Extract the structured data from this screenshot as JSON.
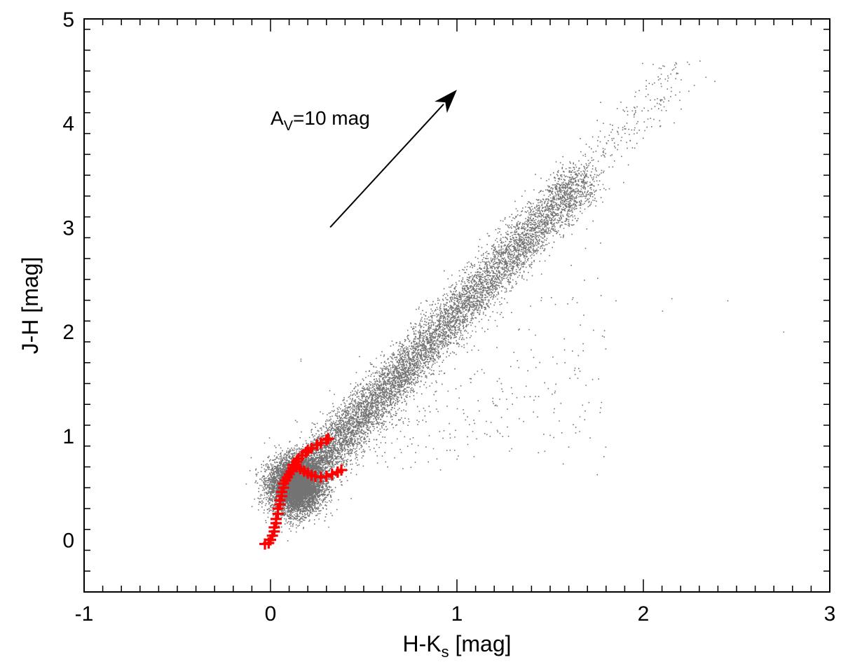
{
  "chart_data": {
    "type": "scatter",
    "title": "",
    "xlabel": {
      "main": "H-K",
      "sub": "s",
      "rest": " [mag]"
    },
    "ylabel": "J-H [mag]",
    "xlim": [
      -1,
      3
    ],
    "ylim": [
      -0.5,
      5
    ],
    "xticks": [
      "-1",
      "0",
      "1",
      "2",
      "3"
    ],
    "yticks": [
      "0",
      "1",
      "2",
      "3",
      "4",
      "5"
    ],
    "xtick_values": [
      -1,
      0,
      1,
      2,
      3
    ],
    "ytick_values": [
      0,
      1,
      2,
      3,
      4,
      5
    ],
    "x_minor_step": 0.1,
    "y_minor_step": 0.2,
    "grid": false,
    "annotation": {
      "text_main": "A",
      "text_sub": "V",
      "text_rest": "=10 mag",
      "x": 0.02,
      "y": 4.0
    },
    "reddening_vector": {
      "x0": 0.32,
      "y0": 3.0,
      "x1": 1.0,
      "y1": 4.32
    },
    "scatter_color": "#000000",
    "sequence_color": "#ff0000",
    "stellar_sequences": [
      {
        "marker": "+",
        "x": [
          -0.03,
          -0.01,
          0.0,
          0.01,
          0.02,
          0.02,
          0.03,
          0.03,
          0.04,
          0.04,
          0.05,
          0.05,
          0.06,
          0.06,
          0.07,
          0.07,
          0.08,
          0.09,
          0.1,
          0.11,
          0.12,
          0.13,
          0.14,
          0.15,
          0.17,
          0.19,
          0.2,
          0.22,
          0.25,
          0.27,
          0.3,
          0.31
        ],
        "y": [
          -0.04,
          -0.03,
          0.0,
          0.04,
          0.08,
          0.12,
          0.16,
          0.2,
          0.25,
          0.3,
          0.34,
          0.38,
          0.42,
          0.46,
          0.5,
          0.54,
          0.57,
          0.6,
          0.63,
          0.66,
          0.69,
          0.72,
          0.75,
          0.78,
          0.81,
          0.84,
          0.86,
          0.88,
          0.91,
          0.93,
          0.96,
          0.97
        ]
      },
      {
        "marker": "+",
        "x": [
          0.12,
          0.14,
          0.16,
          0.18,
          0.2,
          0.22,
          0.24,
          0.27,
          0.3,
          0.33,
          0.36,
          0.38
        ],
        "y": [
          0.72,
          0.7,
          0.68,
          0.66,
          0.64,
          0.62,
          0.61,
          0.6,
          0.61,
          0.63,
          0.65,
          0.67
        ]
      }
    ]
  }
}
